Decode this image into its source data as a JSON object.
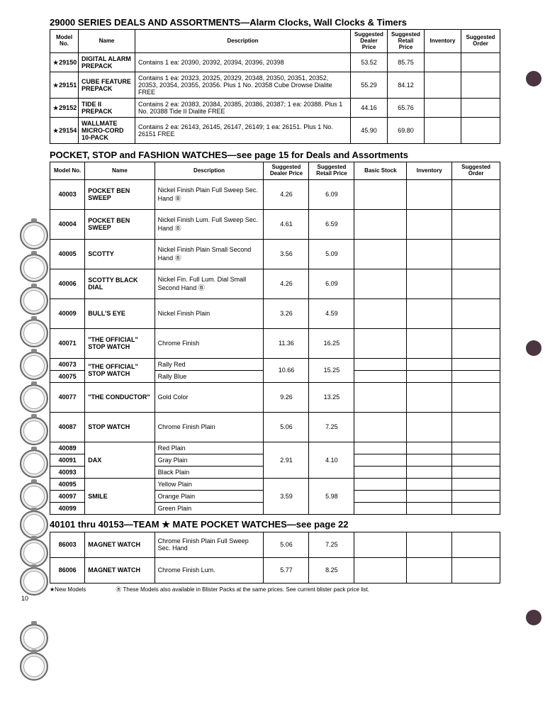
{
  "page_number": "10",
  "holes_bg": "#4a3540",
  "section1": {
    "title": "29000 SERIES DEALS AND ASSORTMENTS—Alarm Clocks, Wall Clocks & Timers",
    "headers": [
      "Model No.",
      "Name",
      "Description",
      "Suggested Dealer Price",
      "Suggested Retail Price",
      "Inventory",
      "Suggested Order"
    ],
    "rows": [
      {
        "model": "29150",
        "star": true,
        "name": "DIGITAL ALARM PREPACK",
        "desc": "Contains 1 ea: 20390, 20392, 20394, 20396, 20398",
        "dealer": "53.52",
        "retail": "85.75"
      },
      {
        "model": "29151",
        "star": true,
        "name": "CUBE FEATURE PREPACK",
        "desc": "Contains 1 ea: 20323, 20325, 20329, 20348, 20350, 20351, 20352, 20353, 20354, 20355, 20356. Plus 1 No. 20358 Cube Drowse Dialite FREE",
        "dealer": "55.29",
        "retail": "84.12"
      },
      {
        "model": "29152",
        "star": true,
        "name": "TIDE II PREPACK",
        "desc": "Contains 2 ea: 20383, 20384, 20385, 20386, 20387; 1 ea: 20388. Plus 1 No. 20388 Tide II Dialite FREE",
        "dealer": "44.16",
        "retail": "65.76"
      },
      {
        "model": "29154",
        "star": true,
        "name": "WALLMATE MICRO-CORD 10-PACK",
        "desc": "Contains 2 ea: 26143, 26145, 26147, 26149; 1 ea: 26151. Plus 1 No. 26151 FREE",
        "dealer": "45.90",
        "retail": "69.80"
      }
    ]
  },
  "section2": {
    "title": "POCKET, STOP and FASHION WATCHES—see page 15 for Deals and Assortments",
    "headers": [
      "Model No.",
      "Name",
      "Description",
      "Suggested Dealer Price",
      "Suggested Retail Price",
      "Basic Stock",
      "Inventory",
      "Suggested Order"
    ],
    "rows": [
      {
        "model": "40003",
        "name": "POCKET BEN SWEEP",
        "desc": "Nickel Finish Plain Full Sweep Sec. Hand Ⓑ",
        "dealer": "4.26",
        "retail": "6.09"
      },
      {
        "model": "40004",
        "name": "POCKET BEN SWEEP",
        "desc": "Nickel Finish Lum. Full Sweep Sec. Hand Ⓑ",
        "dealer": "4.61",
        "retail": "6.59"
      },
      {
        "model": "40005",
        "name": "SCOTTY",
        "desc": "Nickel Finish Plain Small Second Hand Ⓑ",
        "dealer": "3.56",
        "retail": "5.09"
      },
      {
        "model": "40006",
        "name": "SCOTTY BLACK DIAL",
        "desc": "Nickel Fin. Full Lum. Dial Small Second Hand Ⓑ",
        "dealer": "4.26",
        "retail": "6.09"
      },
      {
        "model": "40009",
        "name": "BULL'S EYE",
        "desc": "Nickel Finish Plain",
        "dealer": "3.26",
        "retail": "4.59"
      },
      {
        "model": "40071",
        "name": "\"THE OFFICIAL\" STOP WATCH",
        "desc": "Chrome Finish",
        "dealer": "11.36",
        "retail": "16.25"
      }
    ],
    "group1": {
      "models": [
        "40073",
        "40075"
      ],
      "name": "\"THE OFFICIAL\" STOP WATCH",
      "descs": [
        "Rally Red",
        "Rally Blue"
      ],
      "dealer": "10.66",
      "retail": "15.25"
    },
    "rows2": [
      {
        "model": "40077",
        "name": "\"THE CONDUCTOR\"",
        "desc": "Gold Color",
        "dealer": "9.26",
        "retail": "13.25"
      },
      {
        "model": "40087",
        "name": "STOP WATCH",
        "desc": "Chrome Finish Plain",
        "dealer": "5.06",
        "retail": "7.25"
      }
    ],
    "group2": {
      "models": [
        "40089",
        "40091",
        "40093"
      ],
      "name": "DAX",
      "descs": [
        "Red Plain",
        "Gray Plain",
        "Black Plain"
      ],
      "dealer": "2.91",
      "retail": "4.10"
    },
    "group3": {
      "models": [
        "40095",
        "40097",
        "40099"
      ],
      "name": "SMILE",
      "descs": [
        "Yellow Plain",
        "Orange Plain",
        "Green Plain"
      ],
      "dealer": "3.59",
      "retail": "5.98"
    }
  },
  "section3": {
    "title": "40101 thru 40153—TEAM ★ MATE POCKET WATCHES—see page 22",
    "rows": [
      {
        "model": "86003",
        "name": "MAGNET WATCH",
        "desc": "Chrome Finish Plain Full Sweep Sec. Hand",
        "dealer": "5.06",
        "retail": "7.25"
      },
      {
        "model": "86006",
        "name": "MAGNET WATCH",
        "desc": "Chrome Finish Lum.",
        "dealer": "5.77",
        "retail": "8.25"
      }
    ]
  },
  "footnotes": {
    "star": "★New Models",
    "blister": "Ⓑ These Models also available in Blister Packs at the same prices. See current blister pack price list."
  }
}
